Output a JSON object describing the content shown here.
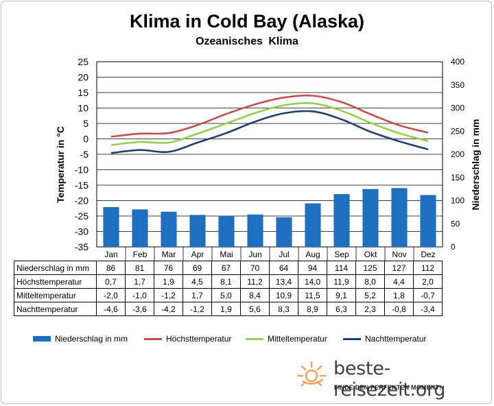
{
  "title": "Klima in Cold Bay (Alaska)",
  "subtitle": "Ozeanisches  Klima",
  "ylabel_left": "Temperatur in °C",
  "ylabel_right": "Niederschlag in mm",
  "brand": {
    "name": "beste-reisezeit.org",
    "tagline": "FINDE DEN PERFEKTEN MOMENT!"
  },
  "colors": {
    "precip": "#1f6fbf",
    "max": "#c0504d",
    "mean": "#92d050",
    "min": "#1f3e6e",
    "sun": "#f4a460"
  },
  "table": {
    "rows": [
      {
        "label": "Niederschlag in mm",
        "values": [
          "86",
          "81",
          "76",
          "69",
          "67",
          "70",
          "64",
          "94",
          "114",
          "125",
          "127",
          "112"
        ]
      },
      {
        "label": "Höchsttemperatur",
        "values": [
          "0,7",
          "1,7",
          "1,9",
          "4,5",
          "8,1",
          "11,2",
          "13,4",
          "14,0",
          "11,9",
          "8,0",
          "4,4",
          "2,0"
        ]
      },
      {
        "label": "Mitteltemperatur",
        "values": [
          "-2,0",
          "-1,0",
          "-1,2",
          "1,7",
          "5,0",
          "8,4",
          "10,9",
          "11,5",
          "9,1",
          "5,2",
          "1,8",
          "-0,7"
        ]
      },
      {
        "label": "Nachttemperatur",
        "values": [
          "-4,6",
          "-3,6",
          "-4,2",
          "-1,2",
          "1,9",
          "5,6",
          "8,3",
          "8,9",
          "6,3",
          "2,3",
          "-0,8",
          "-3,4"
        ]
      }
    ]
  },
  "chart_data": {
    "type": "bar",
    "title": "Klima in Cold Bay (Alaska)",
    "subtitle": "Ozeanisches  Klima",
    "categories": [
      "Jan",
      "Feb",
      "Mar",
      "Apr",
      "Mai",
      "Jun",
      "Jul",
      "Aug",
      "Sep",
      "Okt",
      "Nov",
      "Dez"
    ],
    "ylabel": "Temperatur in °C",
    "ylim": [
      -35,
      25
    ],
    "yticks": [
      "25",
      "20",
      "15",
      "10",
      "5",
      "0",
      "-5",
      "-10",
      "-15",
      "-20",
      "-25",
      "-30",
      "-35"
    ],
    "y2label": "Niederschlag in mm",
    "y2lim": [
      0,
      400
    ],
    "y2ticks": [
      "400",
      "350",
      "300",
      "250",
      "200",
      "150",
      "100",
      "50",
      "0"
    ],
    "grid": true,
    "legend": "bottom",
    "series": [
      {
        "name": "Niederschlag in mm",
        "type": "bar",
        "axis": "right",
        "values": [
          86,
          81,
          76,
          69,
          67,
          70,
          64,
          94,
          114,
          125,
          127,
          112
        ]
      },
      {
        "name": "Höchsttemperatur",
        "type": "line",
        "axis": "left",
        "values": [
          0.7,
          1.7,
          1.9,
          4.5,
          8.1,
          11.2,
          13.4,
          14.0,
          11.9,
          8.0,
          4.4,
          2.0
        ]
      },
      {
        "name": "Mitteltemperatur",
        "type": "line",
        "axis": "left",
        "values": [
          -2.0,
          -1.0,
          -1.2,
          1.7,
          5.0,
          8.4,
          10.9,
          11.5,
          9.1,
          5.2,
          1.8,
          -0.7
        ]
      },
      {
        "name": "Nachttemperatur",
        "type": "line",
        "axis": "left",
        "values": [
          -4.6,
          -3.6,
          -4.2,
          -1.2,
          1.9,
          5.6,
          8.3,
          8.9,
          6.3,
          2.3,
          -0.8,
          -3.4
        ]
      }
    ]
  }
}
